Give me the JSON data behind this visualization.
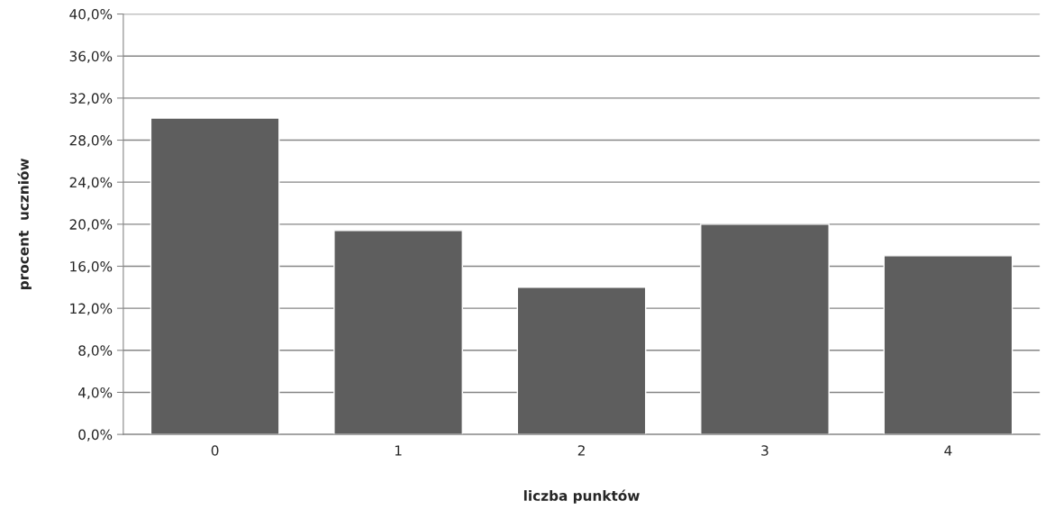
{
  "chart_data": {
    "type": "bar",
    "xlabel": "liczba punktów",
    "ylabel": "procent  uczniów",
    "categories": [
      "0",
      "1",
      "2",
      "3",
      "4"
    ],
    "values": [
      30.1,
      19.4,
      14.0,
      20.0,
      17.0
    ],
    "color": "#5e5e5e",
    "ylim": [
      0,
      40
    ],
    "yticks": [
      {
        "value": 0,
        "label": "0,0%"
      },
      {
        "value": 4,
        "label": "4,0%"
      },
      {
        "value": 8,
        "label": "8,0%"
      },
      {
        "value": 12,
        "label": "12,0%"
      },
      {
        "value": 16,
        "label": "16,0%"
      },
      {
        "value": 20,
        "label": "20,0%"
      },
      {
        "value": 24,
        "label": "24,0%"
      },
      {
        "value": 28,
        "label": "28,0%"
      },
      {
        "value": 32,
        "label": "32,0%"
      },
      {
        "value": 36,
        "label": "36,0%"
      },
      {
        "value": 40,
        "label": "40,0%"
      }
    ],
    "grid": "y",
    "legend": false
  }
}
